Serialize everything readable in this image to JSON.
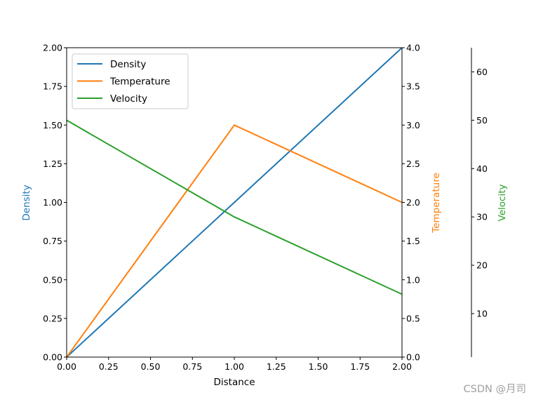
{
  "chart_data": {
    "type": "line",
    "x": [
      0,
      1,
      2
    ],
    "xlabel": "Distance",
    "xlim": [
      0,
      2
    ],
    "x_ticks": [
      "0.00",
      "0.25",
      "0.50",
      "0.75",
      "1.00",
      "1.25",
      "1.50",
      "1.75",
      "2.00"
    ],
    "grid": false,
    "legend_location": "upper-left",
    "series": [
      {
        "name": "Density",
        "axis": "left",
        "color": "#1f77b4",
        "values": [
          0,
          1,
          2
        ]
      },
      {
        "name": "Temperature",
        "axis": "right",
        "color": "#ff7f0e",
        "values": [
          0,
          3,
          2
        ]
      },
      {
        "name": "Velocity",
        "axis": "far-right",
        "color": "#2ca02c",
        "values": [
          50,
          30,
          14
        ]
      }
    ],
    "axes": {
      "left": {
        "label": "Density",
        "color": "#1f77b4",
        "lim": [
          0,
          2
        ],
        "ticks": [
          0,
          0.25,
          0.5,
          0.75,
          1,
          1.25,
          1.5,
          1.75,
          2
        ],
        "tick_labels": [
          "0.00",
          "0.25",
          "0.50",
          "0.75",
          "1.00",
          "1.25",
          "1.50",
          "1.75",
          "2.00"
        ]
      },
      "right": {
        "label": "Temperature",
        "color": "#ff7f0e",
        "lim": [
          0,
          4
        ],
        "ticks": [
          0,
          0.5,
          1,
          1.5,
          2,
          2.5,
          3,
          3.5,
          4
        ],
        "tick_labels": [
          "0.0",
          "0.5",
          "1.0",
          "1.5",
          "2.0",
          "2.5",
          "3.0",
          "3.5",
          "4.0"
        ]
      },
      "far_right": {
        "label": "Velocity",
        "color": "#2ca02c",
        "lim": [
          1,
          65
        ],
        "ticks": [
          10,
          20,
          30,
          40,
          50,
          60
        ],
        "tick_labels": [
          "10",
          "20",
          "30",
          "40",
          "50",
          "60"
        ]
      }
    }
  },
  "watermark": "CSDN @月司"
}
